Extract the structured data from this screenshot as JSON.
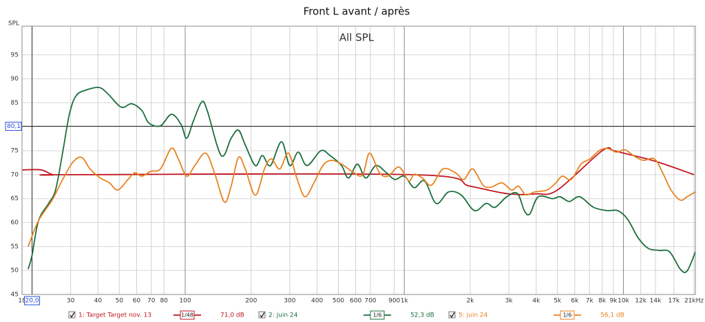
{
  "chart_data": {
    "type": "line",
    "title": "Front L avant / après",
    "subtitle": "All SPL",
    "y_label": "SPL",
    "x_scale": "log",
    "grid": true,
    "xlim": [
      18,
      21300
    ],
    "ylim": [
      45,
      101
    ],
    "yticks": [
      45,
      50,
      55,
      60,
      65,
      70,
      75,
      80,
      85,
      90,
      95
    ],
    "xticks": [
      18,
      30,
      40,
      50,
      60,
      70,
      80,
      100,
      200,
      300,
      400,
      500,
      600,
      700,
      900,
      {
        "value": 1000,
        "label": "1k"
      },
      {
        "value": 2000,
        "label": "2k"
      },
      {
        "value": 3000,
        "label": "3k"
      },
      {
        "value": 4000,
        "label": "4k"
      },
      {
        "value": 5000,
        "label": "5k"
      },
      {
        "value": 6000,
        "label": "6k"
      },
      {
        "value": 7000,
        "label": "7k"
      },
      {
        "value": 8000,
        "label": "8k"
      },
      {
        "value": 9000,
        "label": "9k"
      },
      {
        "value": 10000,
        "label": "10k"
      },
      {
        "value": 12000,
        "label": "12k"
      },
      {
        "value": 14000,
        "label": "14k"
      },
      {
        "value": 17000,
        "label": "17k"
      },
      {
        "value": 21000,
        "label": "21kHz"
      }
    ],
    "cursor": {
      "x": {
        "value": 20,
        "label": "20,0"
      },
      "y": {
        "value": 80.1,
        "label": "80,1"
      }
    },
    "series": [
      {
        "name": "1: Target Target nov. 13",
        "color": "#c0141e",
        "smoothing": "1/48",
        "level": "71,0 dB",
        "x": [
          18,
          22,
          25,
          30,
          1100,
          2000,
          3000,
          4000,
          5000,
          8000,
          9000,
          10000,
          14000,
          21000
        ],
        "values": [
          71,
          71,
          70,
          70,
          70,
          67.6,
          66,
          66,
          66.8,
          75,
          75,
          74.5,
          72.8,
          70
        ]
      },
      {
        "name": "2: juin 24",
        "color": "#1a6e3c",
        "smoothing": "1/6",
        "level": "52,3 dB",
        "x": [
          19.2,
          20,
          21.4,
          23.8,
          25.6,
          27.6,
          29.6,
          31.8,
          35.5,
          40.4,
          44.1,
          51,
          56.9,
          63.4,
          68.2,
          77.1,
          86.5,
          95.7,
          101.5,
          109,
          119,
          126,
          146,
          162,
          175,
          188,
          209,
          225,
          245,
          275,
          300,
          328,
          360,
          416,
          458,
          517,
          556,
          611,
          667,
          742,
          829,
          905,
          1000,
          1109,
          1237,
          1398,
          1591,
          1815,
          2091,
          2363,
          2595,
          2935,
          3280,
          3530,
          3738,
          4090,
          4750,
          5140,
          5660,
          6310,
          7300,
          8440,
          9430,
          10450,
          11680,
          13000,
          14550,
          16250,
          18170,
          19520,
          21320
        ],
        "values": [
          50.3,
          53.2,
          60.4,
          64,
          66.8,
          74.7,
          82.6,
          86.5,
          87.7,
          88.2,
          87,
          84.1,
          84.8,
          83.4,
          80.8,
          80.2,
          82.6,
          80.5,
          77.6,
          81.2,
          85.2,
          83.4,
          74,
          77.6,
          79.3,
          76.2,
          71.9,
          74,
          71.9,
          76.9,
          71.9,
          74.7,
          71.9,
          75,
          74,
          71.9,
          69.3,
          72.2,
          69.3,
          71.9,
          70.4,
          69,
          69.7,
          67.3,
          68.7,
          64,
          66.4,
          65.8,
          62.5,
          64,
          63.2,
          65.4,
          66.1,
          62.5,
          61.8,
          65.4,
          65,
          65.4,
          64.4,
          65.4,
          63.2,
          62.5,
          62.5,
          60.7,
          56.8,
          54.6,
          54.2,
          53.9,
          50.3,
          49.9,
          53.9
        ]
      },
      {
        "name": "5: juin 24",
        "color": "#e8821e",
        "smoothing": "1/6",
        "level": "56,1 dB",
        "x": [
          19.2,
          21.4,
          24.7,
          27.6,
          30.7,
          33.7,
          36.8,
          41,
          45.1,
          49.2,
          54.8,
          58.9,
          63.4,
          69.6,
          77.1,
          86.5,
          93,
          101.5,
          110.6,
          124,
          136,
          151,
          162,
          175,
          188,
          209,
          230,
          247,
          270,
          296,
          323,
          352,
          387,
          425,
          464,
          517,
          577,
          644,
          694,
          770,
          843,
          946,
          1048,
          1109,
          1210,
          1330,
          1500,
          1710,
          1870,
          2050,
          2290,
          2490,
          2790,
          3090,
          3320,
          3580,
          3940,
          4480,
          4920,
          5260,
          5780,
          6400,
          7040,
          7740,
          8440,
          9290,
          10160,
          11100,
          12300,
          13850,
          15100,
          16500,
          18170,
          19520,
          21320
        ],
        "values": [
          55,
          60.4,
          64.7,
          69,
          72.6,
          73.6,
          71.2,
          69.3,
          68.3,
          66.8,
          69,
          70.4,
          69.7,
          70.7,
          71.2,
          75.5,
          73.3,
          69.7,
          71.9,
          74.5,
          70.4,
          64.3,
          67.6,
          73.6,
          71.2,
          65.7,
          71.2,
          73.3,
          71.2,
          74.5,
          69.3,
          65.4,
          68.3,
          71.9,
          73,
          72.2,
          70.7,
          69.9,
          74.5,
          70.4,
          69.7,
          71.6,
          68.7,
          70.1,
          69.3,
          67.8,
          71.2,
          70.4,
          69,
          71.2,
          67.8,
          67.4,
          68.3,
          66.8,
          67.6,
          65.8,
          66.4,
          66.8,
          68.3,
          69.7,
          69,
          72.2,
          73.3,
          75,
          75.5,
          74.7,
          75.2,
          74,
          73,
          73.3,
          70.4,
          66.8,
          64.7,
          65.4,
          66.4
        ]
      }
    ]
  }
}
